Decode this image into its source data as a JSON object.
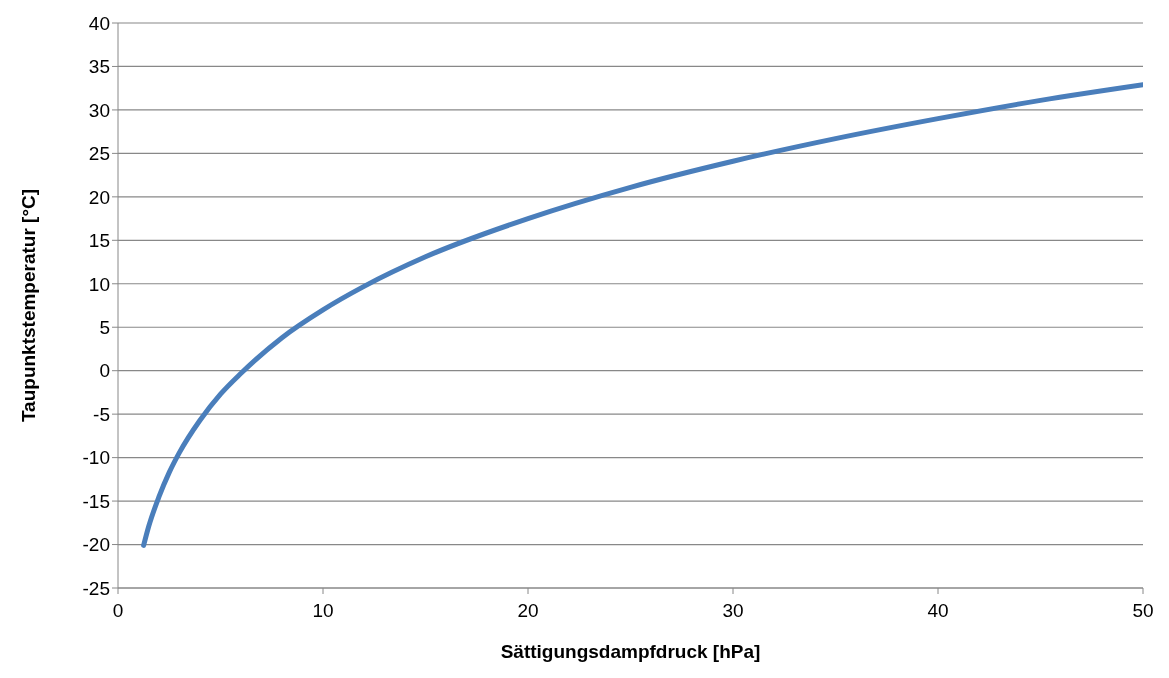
{
  "chart_data": {
    "type": "line",
    "xlabel": "Sättigungsdampfdruck  [hPa]",
    "ylabel": "Taupunktstemperatur [°C]",
    "x": [
      1.25,
      1.5,
      2,
      2.5,
      3,
      4,
      5,
      6,
      8,
      10,
      12,
      15,
      20,
      25,
      30,
      35,
      40,
      45,
      50
    ],
    "series": [
      {
        "color": "#4a7ebb",
        "values": [
          -20.1,
          -17.9,
          -14.5,
          -11.7,
          -9.4,
          -5.7,
          -2.7,
          -0.3,
          3.8,
          7.0,
          9.7,
          13.1,
          17.5,
          21.1,
          24.1,
          26.7,
          29.0,
          31.1,
          32.9
        ]
      }
    ],
    "xlim": [
      0,
      50
    ],
    "xticks": [
      0,
      10,
      20,
      30,
      40,
      50
    ],
    "ylim": [
      -25,
      40
    ],
    "yticks": [
      -25,
      -20,
      -15,
      -10,
      -5,
      0,
      5,
      10,
      15,
      20,
      25,
      30,
      35,
      40
    ],
    "grid": "y",
    "legend": false,
    "marker": "none",
    "line_style": "solid"
  }
}
